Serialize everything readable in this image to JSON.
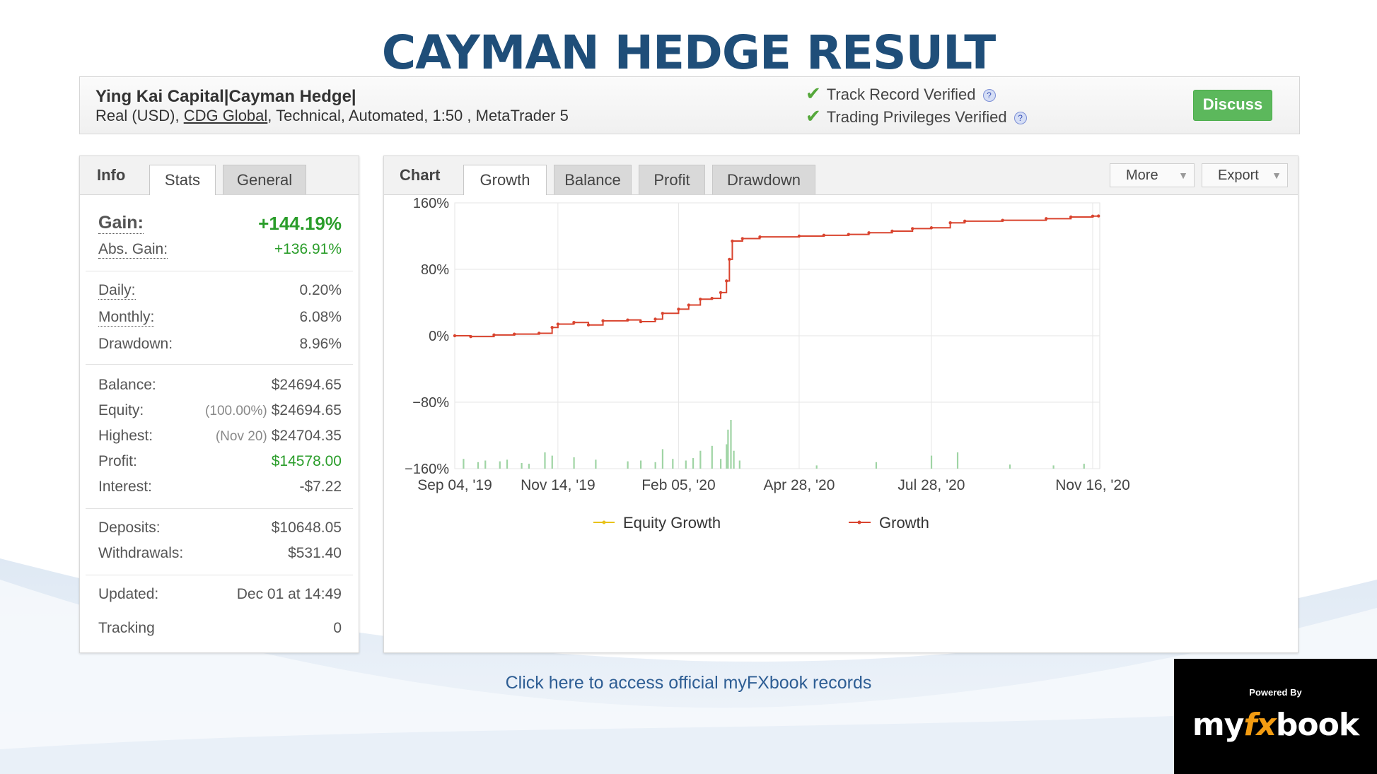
{
  "slide": {
    "title": "CAYMAN HEDGE RESULT",
    "footer_link": "Click here to access official myFXbook records"
  },
  "account": {
    "name": "Ying Kai Capital|Cayman Hedge|",
    "details_prefix": "Real (USD), ",
    "broker": "CDG Global",
    "details_suffix": ", Technical, Automated, 1:50 , MetaTrader 5",
    "verify_track": "Track Record Verified",
    "verify_trading": "Trading Privileges Verified",
    "discuss_label": "Discuss"
  },
  "info_panel": {
    "title": "Info",
    "tabs": [
      "Stats",
      "General"
    ],
    "active_tab": "Stats",
    "gain_label": "Gain:",
    "gain_value": "+144.19%",
    "abs_gain_label": "Abs. Gain:",
    "abs_gain_value": "+136.91%",
    "daily_label": "Daily:",
    "daily_value": "0.20%",
    "monthly_label": "Monthly:",
    "monthly_value": "6.08%",
    "drawdown_label": "Drawdown:",
    "drawdown_value": "8.96%",
    "balance_label": "Balance:",
    "balance_value": "$24694.65",
    "equity_label": "Equity:",
    "equity_sub": "(100.00%)",
    "equity_value": "$24694.65",
    "highest_label": "Highest:",
    "highest_sub": "(Nov 20)",
    "highest_value": "$24704.35",
    "profit_label": "Profit:",
    "profit_value": "$14578.00",
    "interest_label": "Interest:",
    "interest_value": "-$7.22",
    "deposits_label": "Deposits:",
    "deposits_value": "$10648.05",
    "withdrawals_label": "Withdrawals:",
    "withdrawals_value": "$531.40",
    "updated_label": "Updated:",
    "updated_value": "Dec 01 at 14:49",
    "tracking_label": "Tracking",
    "tracking_value": "0"
  },
  "chart_panel": {
    "title": "Chart",
    "tabs": [
      "Growth",
      "Balance",
      "Profit",
      "Drawdown"
    ],
    "active_tab": "Growth",
    "more_label": "More",
    "export_label": "Export"
  },
  "chart_data": {
    "type": "line",
    "x_ticks": [
      "Sep 04, '19",
      "Nov 14, '19",
      "Feb 05, '20",
      "Apr 28, '20",
      "Jul 28, '20",
      "Nov 16, '20"
    ],
    "y_ticks": [
      "160%",
      "80%",
      "0%",
      "−80%",
      "−160%"
    ],
    "ylim": [
      -160,
      160
    ],
    "legend": [
      "Equity Growth",
      "Growth"
    ],
    "legend_position": "bottom",
    "grid": true,
    "colors": {
      "growth": "#d9442f",
      "equity": "#e8c21a",
      "volume": "#9fd4a4"
    },
    "series": [
      {
        "name": "Growth",
        "x": [
          "2019-09-04",
          "2019-09-15",
          "2019-10-01",
          "2019-10-15",
          "2019-11-01",
          "2019-11-10",
          "2019-11-14",
          "2019-11-25",
          "2019-12-05",
          "2019-12-15",
          "2020-01-01",
          "2020-01-10",
          "2020-01-20",
          "2020-01-25",
          "2020-02-05",
          "2020-02-12",
          "2020-02-20",
          "2020-02-28",
          "2020-03-05",
          "2020-03-09",
          "2020-03-11",
          "2020-03-13",
          "2020-03-20",
          "2020-04-01",
          "2020-04-28",
          "2020-05-15",
          "2020-06-01",
          "2020-06-15",
          "2020-07-01",
          "2020-07-15",
          "2020-07-28",
          "2020-08-10",
          "2020-08-20",
          "2020-09-15",
          "2020-10-15",
          "2020-11-01",
          "2020-11-16",
          "2020-11-20"
        ],
        "values": [
          0,
          -1,
          1,
          2,
          3,
          10,
          14,
          16,
          13,
          18,
          19,
          17,
          20,
          27,
          32,
          37,
          44,
          45,
          52,
          66,
          92,
          114,
          117,
          119,
          120,
          121,
          122,
          124,
          126,
          129,
          130,
          136,
          138,
          139,
          141,
          143,
          144,
          144.19
        ]
      }
    ],
    "volume_bars": {
      "x": [
        "2019-09-10",
        "2019-09-20",
        "2019-09-25",
        "2019-10-05",
        "2019-10-10",
        "2019-10-20",
        "2019-10-25",
        "2019-11-05",
        "2019-11-10",
        "2019-11-25",
        "2019-12-10",
        "2020-01-01",
        "2020-01-10",
        "2020-01-20",
        "2020-01-25",
        "2020-02-01",
        "2020-02-10",
        "2020-02-15",
        "2020-02-20",
        "2020-02-28",
        "2020-03-05",
        "2020-03-09",
        "2020-03-10",
        "2020-03-12",
        "2020-03-14",
        "2020-03-18",
        "2020-05-10",
        "2020-06-20",
        "2020-07-28",
        "2020-08-15",
        "2020-09-20",
        "2020-10-20",
        "2020-11-10"
      ],
      "values": [
        12,
        8,
        10,
        9,
        11,
        7,
        6,
        20,
        16,
        14,
        11,
        9,
        10,
        8,
        24,
        12,
        10,
        13,
        22,
        28,
        12,
        30,
        48,
        60,
        22,
        10,
        4,
        8,
        16,
        20,
        5,
        4,
        6
      ]
    }
  }
}
